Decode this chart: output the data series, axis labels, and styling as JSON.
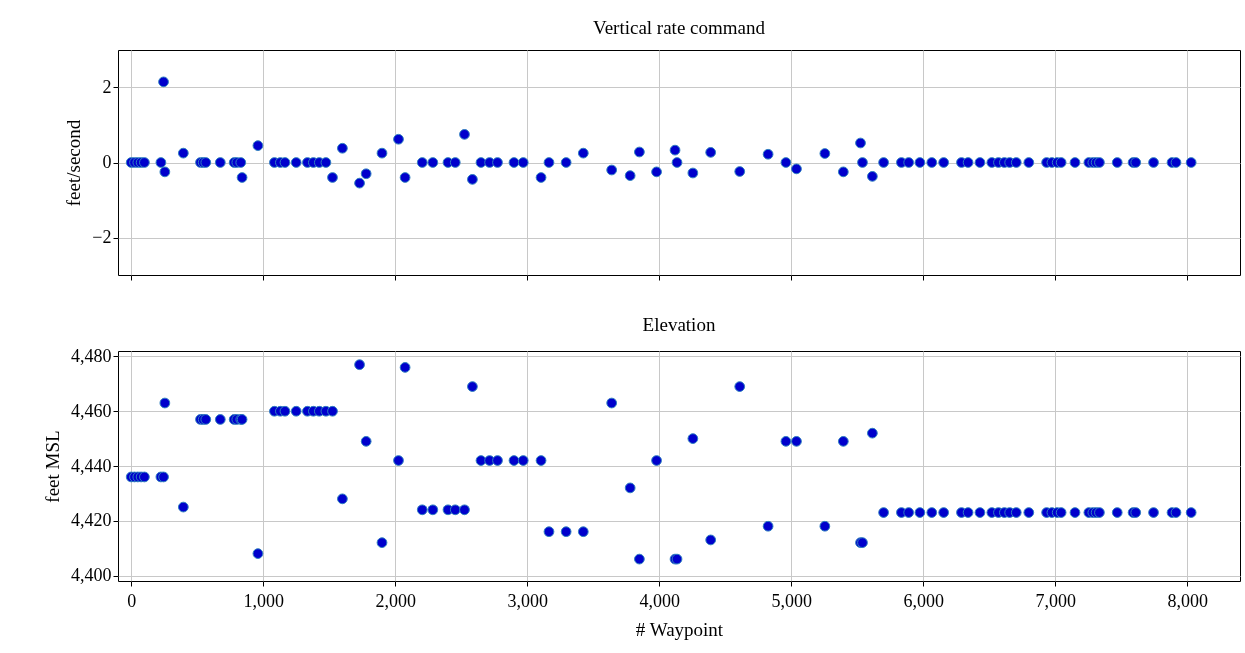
{
  "chart_data": [
    {
      "type": "scatter",
      "title": "Vertical rate command",
      "ylabel": "feet/second",
      "xlim": [
        -100,
        8400
      ],
      "ylim": [
        -3,
        3
      ],
      "xticks": [
        0,
        1000,
        2000,
        3000,
        4000,
        5000,
        6000,
        7000,
        8000
      ],
      "yticks": [
        -2,
        0,
        2
      ],
      "grid": true,
      "marker": "circle",
      "tick_labels": "y",
      "series": [
        {
          "color": "#0000cc",
          "x": [
            0,
            25,
            50,
            75,
            100,
            225,
            245,
            255,
            395,
            525,
            545,
            565,
            675,
            780,
            800,
            830,
            840,
            960,
            1085,
            1130,
            1165,
            1250,
            1335,
            1380,
            1425,
            1475,
            1525,
            1600,
            1730,
            1780,
            1900,
            2025,
            2075,
            2205,
            2285,
            2400,
            2455,
            2525,
            2585,
            2650,
            2715,
            2775,
            2900,
            2970,
            3105,
            3165,
            3295,
            3425,
            3640,
            3780,
            3850,
            3980,
            4120,
            4135,
            4255,
            4390,
            4610,
            4825,
            4960,
            5040,
            5255,
            5395,
            5525,
            5540,
            5615,
            5700,
            5835,
            5890,
            5975,
            6065,
            6155,
            6290,
            6340,
            6430,
            6520,
            6570,
            6615,
            6655,
            6705,
            6800,
            6935,
            6975,
            7015,
            7045,
            7150,
            7255,
            7285,
            7310,
            7335,
            7470,
            7590,
            7610,
            7745,
            7885,
            7915,
            8030
          ],
          "values": [
            0,
            0,
            0,
            0,
            0,
            0,
            2.15,
            -0.25,
            0.25,
            0,
            0,
            0,
            0,
            0,
            0,
            0,
            -0.4,
            0.45,
            0,
            0,
            0,
            0,
            0,
            0,
            0,
            0,
            -0.4,
            0.38,
            -0.55,
            -0.3,
            0.25,
            0.62,
            -0.4,
            0,
            0,
            0,
            0,
            0.75,
            -0.45,
            0,
            0,
            0,
            0,
            0,
            -0.4,
            0,
            0,
            0.25,
            -0.2,
            -0.35,
            0.28,
            -0.25,
            0.33,
            0,
            -0.28,
            0.27,
            -0.24,
            0.22,
            0,
            -0.17,
            0.24,
            -0.25,
            0.52,
            0,
            -0.37,
            0,
            0,
            0,
            0,
            0,
            0,
            0,
            0,
            0,
            0,
            0,
            0,
            0,
            0,
            0,
            0,
            0,
            0,
            0,
            0,
            0,
            0,
            0,
            0,
            0,
            0,
            0,
            0,
            0,
            0,
            0
          ]
        }
      ]
    },
    {
      "type": "scatter",
      "title": "Elevation",
      "xlabel": "# Waypoint",
      "ylabel": "feet MSL",
      "xlim": [
        -100,
        8400
      ],
      "ylim": [
        4398,
        4482
      ],
      "xticks": [
        {
          "value": 0,
          "label": "0"
        },
        {
          "value": 1000,
          "label": "1,000"
        },
        {
          "value": 2000,
          "label": "2,000"
        },
        {
          "value": 3000,
          "label": "3,000"
        },
        {
          "value": 4000,
          "label": "4,000"
        },
        {
          "value": 5000,
          "label": "5,000"
        },
        {
          "value": 6000,
          "label": "6,000"
        },
        {
          "value": 7000,
          "label": "7,000"
        },
        {
          "value": 8000,
          "label": "8,000"
        }
      ],
      "yticks": [
        {
          "value": 4400,
          "label": "4,400"
        },
        {
          "value": 4420,
          "label": "4,420"
        },
        {
          "value": 4440,
          "label": "4,440"
        },
        {
          "value": 4460,
          "label": "4,460"
        },
        {
          "value": 4480,
          "label": "4,480"
        }
      ],
      "grid": true,
      "marker": "circle",
      "series": [
        {
          "color": "#0000cc",
          "x": [
            0,
            25,
            50,
            75,
            100,
            225,
            245,
            255,
            395,
            525,
            545,
            565,
            675,
            780,
            800,
            830,
            840,
            960,
            1085,
            1130,
            1165,
            1250,
            1335,
            1380,
            1425,
            1475,
            1525,
            1600,
            1730,
            1780,
            1900,
            2025,
            2075,
            2205,
            2285,
            2400,
            2455,
            2525,
            2585,
            2650,
            2715,
            2775,
            2900,
            2970,
            3105,
            3165,
            3295,
            3425,
            3640,
            3780,
            3850,
            3980,
            4120,
            4135,
            4255,
            4390,
            4610,
            4825,
            4960,
            5040,
            5255,
            5395,
            5525,
            5540,
            5615,
            5700,
            5835,
            5890,
            5975,
            6065,
            6155,
            6290,
            6340,
            6430,
            6520,
            6570,
            6615,
            6655,
            6705,
            6800,
            6935,
            6975,
            7015,
            7045,
            7150,
            7255,
            7285,
            7310,
            7335,
            7470,
            7590,
            7610,
            7745,
            7885,
            7915,
            8030
          ],
          "values": [
            4436,
            4436,
            4436,
            4436,
            4436,
            4436,
            4436,
            4463,
            4425,
            4457,
            4457,
            4457,
            4457,
            4457,
            4457,
            4457,
            4457,
            4408,
            4460,
            4460,
            4460,
            4460,
            4460,
            4460,
            4460,
            4460,
            4460,
            4428,
            4477,
            4449,
            4412,
            4442,
            4476,
            4424,
            4424,
            4424,
            4424,
            4424,
            4469,
            4442,
            4442,
            4442,
            4442,
            4442,
            4442,
            4416,
            4416,
            4416,
            4463,
            4432,
            4406,
            4442,
            4406,
            4406,
            4450,
            4413,
            4469,
            4418,
            4449,
            4449,
            4418,
            4449,
            4412,
            4412,
            4452,
            4423,
            4423,
            4423,
            4423,
            4423,
            4423,
            4423,
            4423,
            4423,
            4423,
            4423,
            4423,
            4423,
            4423,
            4423,
            4423,
            4423,
            4423,
            4423,
            4423,
            4423,
            4423,
            4423,
            4423,
            4423,
            4423,
            4423,
            4423,
            4423,
            4423,
            4423
          ]
        }
      ]
    }
  ]
}
